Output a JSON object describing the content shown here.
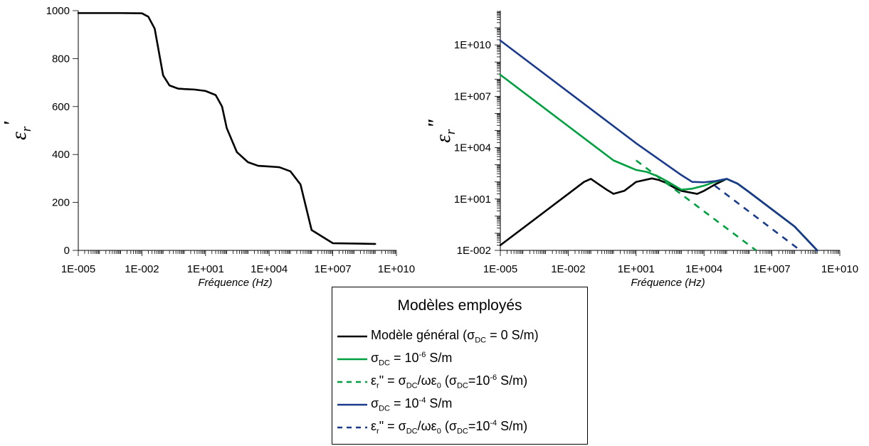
{
  "colors": {
    "general": "#000000",
    "s6": "#00a040",
    "s4": "#1a3a8c"
  },
  "chart_data": [
    {
      "type": "line",
      "xlabel": "Fréquence (Hz)",
      "ylabel": "εr'",
      "xscale": "log",
      "xlim": [
        1e-05,
        10000000000.0
      ],
      "ylim": [
        0,
        1000
      ],
      "xticks": [
        "1E-005",
        "1E-002",
        "1E+001",
        "1E+004",
        "1E+007",
        "1E+010"
      ],
      "yticks": [
        "0",
        "200",
        "400",
        "600",
        "800",
        "1000"
      ],
      "series": [
        {
          "name": "Modèle général (σDC = 0 S/m)",
          "color": "#000000",
          "dash": false,
          "x": [
            1e-05,
            0.001,
            0.01,
            0.02,
            0.04,
            0.1,
            0.2,
            0.5,
            1,
            3,
            10,
            30,
            60,
            100,
            300,
            1000,
            3000,
            10000,
            30000,
            100000,
            300000,
            1000000.0,
            10000000.0,
            1000000000.0
          ],
          "y": [
            990,
            990,
            989,
            975,
            925,
            730,
            688,
            675,
            673,
            671,
            665,
            648,
            600,
            510,
            410,
            368,
            353,
            350,
            347,
            330,
            275,
            85,
            30,
            27
          ]
        }
      ]
    },
    {
      "type": "line",
      "xlabel": "Fréquence (Hz)",
      "ylabel": "εr\"",
      "xscale": "log",
      "yscale": "log",
      "xlim": [
        1e-05,
        10000000000.0
      ],
      "ylim": [
        0.01,
        1000000000000.0
      ],
      "xticks": [
        "1E-005",
        "1E-002",
        "1E+001",
        "1E+004",
        "1E+007",
        "1E+010"
      ],
      "yticks": [
        "1E-002",
        "1E+001",
        "1E+004",
        "1E+007",
        "1E+010"
      ],
      "series": [
        {
          "name": "Modèle général (σDC = 0 S/m)",
          "color": "#000000",
          "dash": false,
          "x": [
            1e-05,
            0.001,
            0.01,
            0.05,
            0.1,
            0.2,
            0.5,
            1,
            3,
            10,
            50,
            100,
            200,
            500,
            1000,
            5000,
            10000,
            30000,
            100000,
            300000,
            1000000.0,
            10000000.0,
            100000000.0,
            1000000000.0
          ],
          "y": [
            0.02,
            2,
            20,
            100,
            150,
            80,
            35,
            20,
            30,
            100,
            160,
            130,
            90,
            45,
            30,
            20,
            30,
            70,
            150,
            80,
            25,
            2.5,
            0.25,
            0.01
          ]
        },
        {
          "name": "σDC = 10-6 S/m",
          "color": "#00a040",
          "dash": false,
          "x": [
            1e-05,
            0.001,
            0.01,
            0.1,
            1,
            10,
            30,
            100,
            300,
            1000,
            3000,
            10000,
            30000,
            100000,
            300000,
            1000000.0,
            10000000.0,
            100000000.0,
            1000000000.0
          ],
          "y": [
            180000000,
            1800000,
            180000,
            18000,
            1800,
            500,
            380,
            200,
            90,
            35,
            40,
            60,
            100,
            150,
            80,
            25,
            2.5,
            0.25,
            0.01
          ]
        },
        {
          "name": "εr\" = σDC/ωε0 (σDC=10-6 S/m)",
          "color": "#00a040",
          "dash": true,
          "x": [
            10,
            2000000
          ],
          "y": [
            1800,
            0.01
          ]
        },
        {
          "name": "σDC = 10-4 S/m",
          "color": "#1a3a8c",
          "dash": false,
          "x": [
            1e-05,
            0.01,
            10,
            1000,
            3000,
            10000,
            30000,
            100000,
            300000,
            1000000.0,
            10000000.0,
            100000000.0,
            1000000000.0
          ],
          "y": [
            18000000000,
            18000000,
            18000,
            250,
            100,
            95,
            110,
            150,
            80,
            25,
            2.5,
            0.25,
            0.01
          ]
        },
        {
          "name": "εr\" = σDC/ωε0 (σDC=10-4 S/m)",
          "color": "#1a3a8c",
          "dash": true,
          "x": [
            30000,
            180000000
          ],
          "y": [
            60,
            0.01
          ]
        }
      ]
    }
  ],
  "legend": {
    "title": "Modèles employés",
    "items": [
      {
        "color": "#000000",
        "dash": false,
        "parts": [
          "Modèle général (",
          "σ",
          "DC",
          " = 0 S/m)"
        ]
      },
      {
        "color": "#00a040",
        "dash": false,
        "parts": [
          "σ",
          "DC",
          " = 10",
          "-6",
          " S/m"
        ]
      },
      {
        "color": "#00a040",
        "dash": true,
        "parts": [
          "ε",
          "r",
          "\" = σ",
          "DC",
          "/ωε",
          "0",
          "  (σ",
          "DC",
          "=10",
          "-6",
          " S/m)"
        ]
      },
      {
        "color": "#1a3a8c",
        "dash": false,
        "parts": [
          "σ",
          "DC",
          " = 10",
          "-4",
          " S/m"
        ]
      },
      {
        "color": "#1a3a8c",
        "dash": true,
        "parts": [
          "ε",
          "r",
          "\" = σ",
          "DC",
          "/ωε",
          "0",
          "  (σ",
          "DC",
          "=10",
          "-4",
          " S/m)"
        ]
      }
    ]
  }
}
